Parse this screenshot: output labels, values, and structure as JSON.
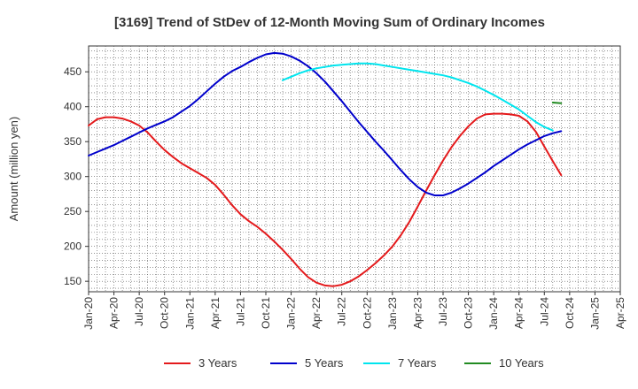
{
  "chart_data": {
    "type": "line",
    "title": "[3169]  Trend of StDev of 12-Month Moving Sum of Ordinary Incomes",
    "xlabel": "",
    "ylabel": "Amount (million yen)",
    "x_ticks": [
      "Jan-20",
      "Apr-20",
      "Jul-20",
      "Oct-20",
      "Jan-21",
      "Apr-21",
      "Jul-21",
      "Oct-21",
      "Jan-22",
      "Apr-22",
      "Jul-22",
      "Oct-22",
      "Jan-23",
      "Apr-23",
      "Jul-23",
      "Oct-23",
      "Jan-24",
      "Apr-24",
      "Jul-24",
      "Oct-24",
      "Jan-25",
      "Apr-25"
    ],
    "y_ticks": [
      150,
      200,
      250,
      300,
      350,
      400,
      450
    ],
    "ylim": [
      135,
      487
    ],
    "grid": true,
    "legend_position": "bottom",
    "series": [
      {
        "name": "3 Years",
        "color": "#e41a1c",
        "points": [
          [
            "2020-01",
            373
          ],
          [
            "2020-02",
            382
          ],
          [
            "2020-03",
            385
          ],
          [
            "2020-04",
            385
          ],
          [
            "2020-05",
            383
          ],
          [
            "2020-06",
            379
          ],
          [
            "2020-07",
            373
          ],
          [
            "2020-08",
            363
          ],
          [
            "2020-09",
            350
          ],
          [
            "2020-10",
            338
          ],
          [
            "2020-11",
            328
          ],
          [
            "2020-12",
            319
          ],
          [
            "2021-01",
            312
          ],
          [
            "2021-02",
            305
          ],
          [
            "2021-03",
            298
          ],
          [
            "2021-04",
            288
          ],
          [
            "2021-05",
            274
          ],
          [
            "2021-06",
            259
          ],
          [
            "2021-07",
            246
          ],
          [
            "2021-08",
            236
          ],
          [
            "2021-09",
            228
          ],
          [
            "2021-10",
            218
          ],
          [
            "2021-11",
            207
          ],
          [
            "2021-12",
            195
          ],
          [
            "2022-01",
            182
          ],
          [
            "2022-02",
            168
          ],
          [
            "2022-03",
            156
          ],
          [
            "2022-04",
            148
          ],
          [
            "2022-05",
            144
          ],
          [
            "2022-06",
            143
          ],
          [
            "2022-07",
            145
          ],
          [
            "2022-08",
            150
          ],
          [
            "2022-09",
            157
          ],
          [
            "2022-10",
            166
          ],
          [
            "2022-11",
            176
          ],
          [
            "2022-12",
            187
          ],
          [
            "2023-01",
            200
          ],
          [
            "2023-02",
            216
          ],
          [
            "2023-03",
            235
          ],
          [
            "2023-04",
            257
          ],
          [
            "2023-05",
            280
          ],
          [
            "2023-06",
            302
          ],
          [
            "2023-07",
            323
          ],
          [
            "2023-08",
            342
          ],
          [
            "2023-09",
            358
          ],
          [
            "2023-10",
            372
          ],
          [
            "2023-11",
            383
          ],
          [
            "2023-12",
            389
          ],
          [
            "2024-01",
            390
          ],
          [
            "2024-02",
            390
          ],
          [
            "2024-03",
            389
          ],
          [
            "2024-04",
            387
          ],
          [
            "2024-05",
            379
          ],
          [
            "2024-06",
            364
          ],
          [
            "2024-07",
            343
          ],
          [
            "2024-08",
            322
          ],
          [
            "2024-09",
            302
          ]
        ]
      },
      {
        "name": "5 Years",
        "color": "#0000cc",
        "points": [
          [
            "2020-01",
            330
          ],
          [
            "2020-02",
            335
          ],
          [
            "2020-03",
            340
          ],
          [
            "2020-04",
            345
          ],
          [
            "2020-05",
            351
          ],
          [
            "2020-06",
            357
          ],
          [
            "2020-07",
            363
          ],
          [
            "2020-08",
            369
          ],
          [
            "2020-09",
            374
          ],
          [
            "2020-10",
            379
          ],
          [
            "2020-11",
            385
          ],
          [
            "2020-12",
            393
          ],
          [
            "2021-01",
            401
          ],
          [
            "2021-02",
            411
          ],
          [
            "2021-03",
            422
          ],
          [
            "2021-04",
            433
          ],
          [
            "2021-05",
            443
          ],
          [
            "2021-06",
            451
          ],
          [
            "2021-07",
            457
          ],
          [
            "2021-08",
            464
          ],
          [
            "2021-09",
            470
          ],
          [
            "2021-10",
            475
          ],
          [
            "2021-11",
            477
          ],
          [
            "2021-12",
            476
          ],
          [
            "2022-01",
            472
          ],
          [
            "2022-02",
            466
          ],
          [
            "2022-03",
            458
          ],
          [
            "2022-04",
            448
          ],
          [
            "2022-05",
            436
          ],
          [
            "2022-06",
            422
          ],
          [
            "2022-07",
            408
          ],
          [
            "2022-08",
            393
          ],
          [
            "2022-09",
            378
          ],
          [
            "2022-10",
            364
          ],
          [
            "2022-11",
            350
          ],
          [
            "2022-12",
            337
          ],
          [
            "2023-01",
            323
          ],
          [
            "2023-02",
            309
          ],
          [
            "2023-03",
            296
          ],
          [
            "2023-04",
            285
          ],
          [
            "2023-05",
            277
          ],
          [
            "2023-06",
            273
          ],
          [
            "2023-07",
            273
          ],
          [
            "2023-08",
            277
          ],
          [
            "2023-09",
            283
          ],
          [
            "2023-10",
            290
          ],
          [
            "2023-11",
            298
          ],
          [
            "2023-12",
            306
          ],
          [
            "2024-01",
            315
          ],
          [
            "2024-02",
            323
          ],
          [
            "2024-03",
            331
          ],
          [
            "2024-04",
            339
          ],
          [
            "2024-05",
            346
          ],
          [
            "2024-06",
            352
          ],
          [
            "2024-07",
            358
          ],
          [
            "2024-08",
            362
          ],
          [
            "2024-09",
            365
          ]
        ]
      },
      {
        "name": "7 Years",
        "color": "#00e5ee",
        "points": [
          [
            "2021-12",
            438
          ],
          [
            "2022-01",
            443
          ],
          [
            "2022-02",
            448
          ],
          [
            "2022-03",
            452
          ],
          [
            "2022-04",
            455
          ],
          [
            "2022-05",
            457
          ],
          [
            "2022-06",
            459
          ],
          [
            "2022-07",
            460
          ],
          [
            "2022-08",
            461
          ],
          [
            "2022-09",
            462
          ],
          [
            "2022-10",
            462
          ],
          [
            "2022-11",
            461
          ],
          [
            "2022-12",
            459
          ],
          [
            "2023-01",
            457
          ],
          [
            "2023-02",
            455
          ],
          [
            "2023-03",
            453
          ],
          [
            "2023-04",
            451
          ],
          [
            "2023-05",
            449
          ],
          [
            "2023-06",
            447
          ],
          [
            "2023-07",
            445
          ],
          [
            "2023-08",
            442
          ],
          [
            "2023-09",
            438
          ],
          [
            "2023-10",
            434
          ],
          [
            "2023-11",
            429
          ],
          [
            "2023-12",
            423
          ],
          [
            "2024-01",
            417
          ],
          [
            "2024-02",
            410
          ],
          [
            "2024-03",
            403
          ],
          [
            "2024-04",
            396
          ],
          [
            "2024-05",
            387
          ],
          [
            "2024-06",
            378
          ],
          [
            "2024-07",
            371
          ],
          [
            "2024-08",
            366
          ]
        ]
      },
      {
        "name": "10 Years",
        "color": "#228b22",
        "points": [
          [
            "2024-08",
            406
          ],
          [
            "2024-09",
            405
          ]
        ]
      }
    ]
  }
}
